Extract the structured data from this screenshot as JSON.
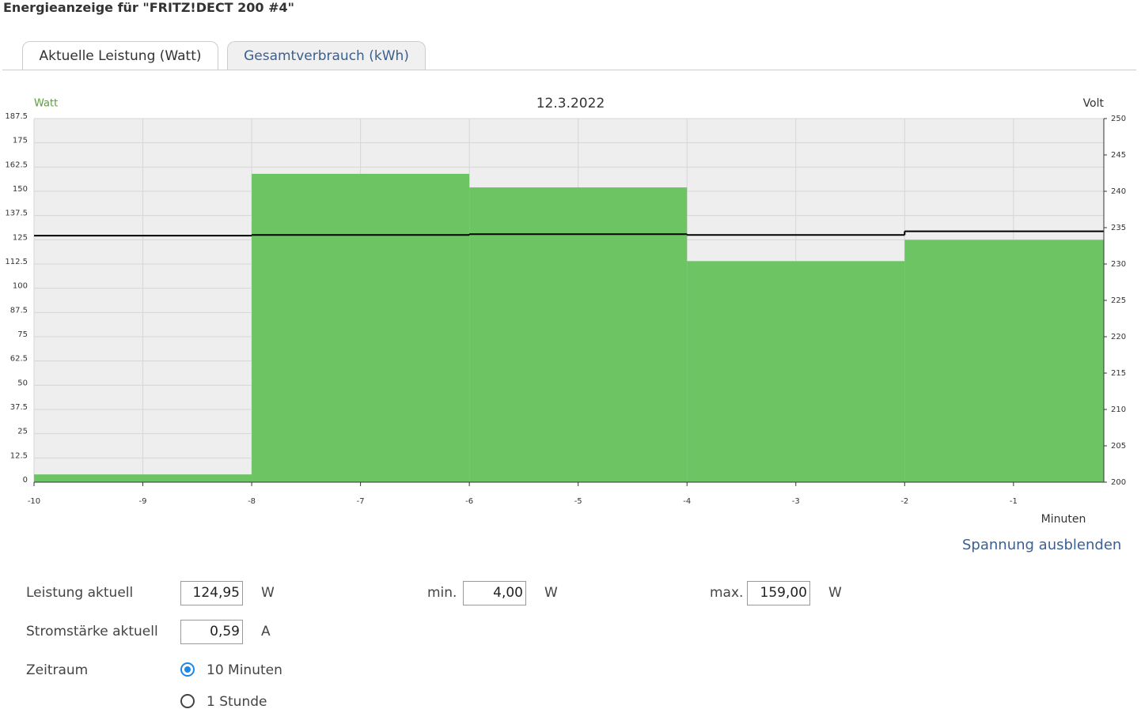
{
  "header": {
    "title": "Energieanzeige für \"FRITZ!DECT 200 #4\""
  },
  "tabs": [
    "Aktuelle Leistung (Watt)",
    "Gesamtverbrauch (kWh)"
  ],
  "chart_data": {
    "type": "step",
    "title": "12.3.2022",
    "y_label": "Watt",
    "y2_label": "Volt",
    "x_label": "Minuten",
    "x": [
      -10,
      -8,
      -6,
      -4,
      -2
    ],
    "xlim": [
      -10,
      -0.17
    ],
    "xticks": [
      -10,
      -9,
      -8,
      -7,
      -6,
      -5,
      -4,
      -3,
      -2,
      -1
    ],
    "ylim": [
      0,
      187.5
    ],
    "yticks": [
      0,
      12.5,
      25,
      37.5,
      50,
      62.5,
      75,
      87.5,
      100,
      112.5,
      125,
      137.5,
      150,
      162.5,
      175,
      187.5
    ],
    "y2lim": [
      200,
      250
    ],
    "y2ticks": [
      200,
      205,
      210,
      215,
      220,
      225,
      230,
      235,
      240,
      245,
      250
    ],
    "grid": true,
    "series": [
      {
        "color": "#6cc463",
        "values": [
          4,
          159,
          152,
          114,
          124.95
        ]
      },
      {
        "color": "#000000",
        "axis": "y2",
        "values": [
          233.9,
          234.0,
          234.1,
          234.0,
          234.5
        ]
      }
    ]
  },
  "link": "Spannung ausblenden",
  "form": {
    "power": {
      "label": "Leistung aktuell",
      "value": "124,95",
      "unit": "W"
    },
    "min": {
      "label": "min.",
      "value": "4,00",
      "unit": "W"
    },
    "max": {
      "label": "max.",
      "value": "159,00",
      "unit": "W"
    },
    "current": {
      "label": "Stromstärke aktuell",
      "value": "0,59",
      "unit": "A"
    },
    "period": {
      "label": "Zeitraum",
      "options": [
        "10 Minuten",
        "1 Stunde"
      ]
    }
  }
}
